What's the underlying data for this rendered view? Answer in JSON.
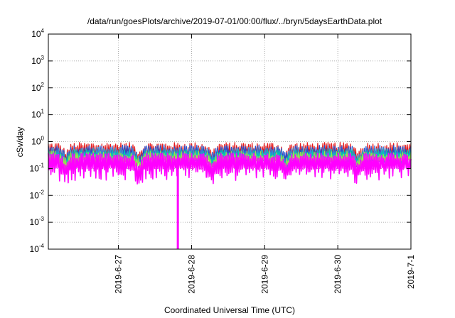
{
  "chart_data": {
    "type": "line",
    "title": "/data/run/goesPlots/archive/2019-07-01/00:00/flux/../bryn/5daysEarthData.plot",
    "xlabel": "Coordinated Universal Time (UTC)",
    "ylabel": "cSv/day",
    "yscale": "log",
    "ylim": [
      0.0001,
      10000
    ],
    "y_ticks": [
      {
        "base": "10",
        "exp": "4",
        "value": 10000
      },
      {
        "base": "10",
        "exp": "3",
        "value": 1000
      },
      {
        "base": "10",
        "exp": "2",
        "value": 100
      },
      {
        "base": "10",
        "exp": "1",
        "value": 10
      },
      {
        "base": "10",
        "exp": "0",
        "value": 1
      },
      {
        "base": "10",
        "exp": "-1",
        "value": 0.1
      },
      {
        "base": "10",
        "exp": "-2",
        "value": 0.01
      },
      {
        "base": "10",
        "exp": "-3",
        "value": 0.001
      },
      {
        "base": "10",
        "exp": "-4",
        "value": 0.0001
      }
    ],
    "xlim": [
      "2019-06-26T01:00",
      "2019-07-01T00:00"
    ],
    "x_ticks": [
      {
        "label": "2019-6-27",
        "value": "2019-06-27T00:00"
      },
      {
        "label": "2019-6-28",
        "value": "2019-06-28T00:00"
      },
      {
        "label": "2019-6-29",
        "value": "2019-06-29T00:00"
      },
      {
        "label": "2019-6-30",
        "value": "2019-06-30T00:00"
      },
      {
        "label": "2019-7-1",
        "value": "2019-07-01T00:00"
      }
    ],
    "grid": true,
    "series": [
      {
        "color": "#e41a1c",
        "upper": 0.75,
        "lower": 0.3,
        "dip": 0.45
      },
      {
        "color": "#1f4fd1",
        "upper": 0.6,
        "lower": 0.25,
        "dip": 0.45
      },
      {
        "color": "#3a8fd6",
        "upper": 0.5,
        "lower": 0.22,
        "dip": 0.45
      },
      {
        "color": "#00c8b4",
        "upper": 0.42,
        "lower": 0.2,
        "dip": 0.45
      },
      {
        "color": "#9be34a",
        "upper": 0.36,
        "lower": 0.18,
        "dip": 0.45
      },
      {
        "color": "#ff00ff",
        "upper": 0.3,
        "lower": 0.06,
        "dip": 0.5
      }
    ],
    "spike": {
      "color": "#ff00ff",
      "x": "2019-06-27T19:30",
      "y": 0.0001
    }
  }
}
